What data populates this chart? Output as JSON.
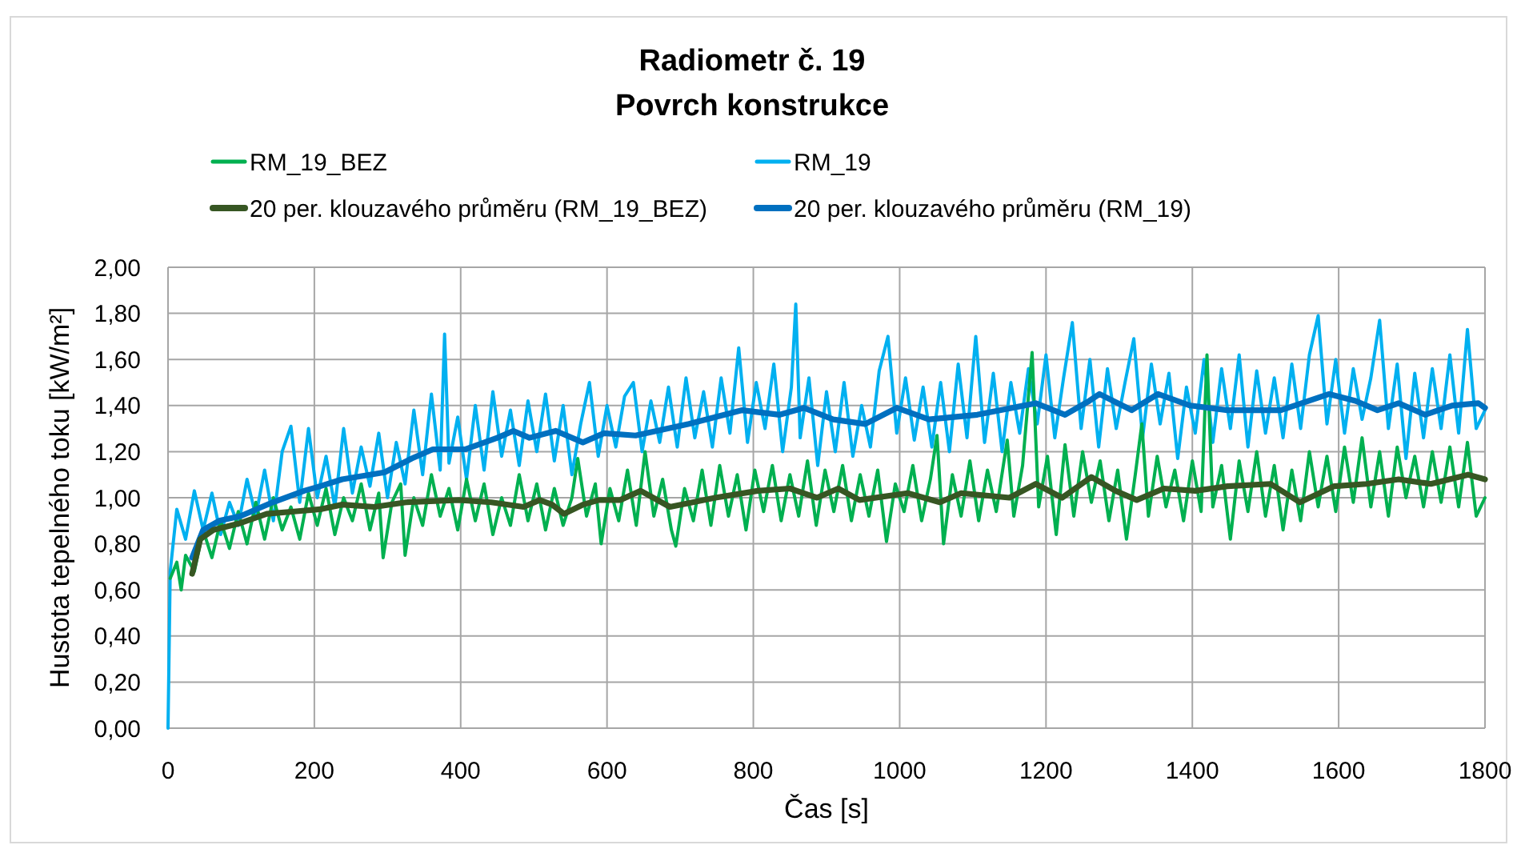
{
  "chart_data": {
    "type": "line",
    "title": "Radiometr č. 19",
    "subtitle": "Povrch konstrukce",
    "xlabel": "Čas [s]",
    "ylabel": "Hustota tepelného toku [kW/m²]",
    "xlim": [
      0,
      1800
    ],
    "xticks": [
      0,
      200,
      400,
      600,
      800,
      1000,
      1200,
      1400,
      1600,
      1800
    ],
    "ylim": [
      0,
      2
    ],
    "yticks": [
      {
        "value": 0,
        "label": "0,00"
      },
      {
        "value": 0.2,
        "label": "0,20"
      },
      {
        "value": 0.4,
        "label": "0,40"
      },
      {
        "value": 0.6,
        "label": "0,60"
      },
      {
        "value": 0.8,
        "label": "0,80"
      },
      {
        "value": 1,
        "label": "1,00"
      },
      {
        "value": 1.2,
        "label": "1,20"
      },
      {
        "value": 1.4,
        "label": "1,40"
      },
      {
        "value": 1.6,
        "label": "1,60"
      },
      {
        "value": 1.8,
        "label": "1,80"
      },
      {
        "value": 2,
        "label": "2,00"
      }
    ],
    "grid": true,
    "legend": "top",
    "series": [
      {
        "name": "RM_19_BEZ",
        "color": "#00b050",
        "x": [
          3,
          12,
          18,
          24,
          36,
          48,
          60,
          72,
          84,
          96,
          108,
          120,
          132,
          144,
          156,
          168,
          180,
          192,
          204,
          216,
          228,
          240,
          252,
          264,
          276,
          288,
          294,
          306,
          318,
          324,
          336,
          348,
          360,
          372,
          384,
          396,
          408,
          420,
          432,
          444,
          456,
          468,
          480,
          492,
          504,
          516,
          528,
          540,
          552,
          560,
          572,
          584,
          592,
          604,
          616,
          628,
          640,
          652,
          664,
          676,
          688,
          694,
          706,
          718,
          730,
          742,
          754,
          766,
          778,
          790,
          802,
          814,
          826,
          838,
          850,
          862,
          874,
          886,
          898,
          910,
          922,
          934,
          946,
          958,
          970,
          982,
          994,
          1006,
          1018,
          1030,
          1042,
          1051,
          1060,
          1072,
          1084,
          1096,
          1108,
          1120,
          1132,
          1147,
          1156,
          1168,
          1181,
          1190,
          1202,
          1214,
          1226,
          1238,
          1250,
          1262,
          1274,
          1286,
          1298,
          1310,
          1322,
          1331,
          1340,
          1352,
          1364,
          1376,
          1388,
          1400,
          1412,
          1420,
          1428,
          1440,
          1452,
          1464,
          1476,
          1488,
          1500,
          1512,
          1524,
          1536,
          1548,
          1560,
          1572,
          1584,
          1596,
          1608,
          1620,
          1632,
          1644,
          1656,
          1668,
          1680,
          1692,
          1704,
          1716,
          1728,
          1740,
          1752,
          1764,
          1776,
          1788,
          1800
        ],
        "values": [
          0.65,
          0.72,
          0.6,
          0.75,
          0.68,
          0.86,
          0.74,
          0.9,
          0.78,
          0.94,
          0.8,
          0.98,
          0.82,
          1.0,
          0.86,
          0.96,
          0.82,
          1.02,
          0.88,
          1.04,
          0.84,
          1.0,
          0.9,
          1.06,
          0.86,
          1.02,
          0.74,
          0.98,
          1.06,
          0.75,
          1.0,
          0.88,
          1.1,
          0.92,
          1.04,
          0.86,
          1.08,
          0.9,
          1.06,
          0.84,
          1.0,
          0.88,
          1.1,
          0.9,
          1.06,
          0.86,
          1.04,
          0.88,
          1.0,
          1.17,
          0.92,
          1.06,
          0.8,
          1.04,
          0.9,
          1.12,
          0.88,
          1.2,
          0.92,
          1.08,
          0.86,
          0.79,
          1.04,
          0.9,
          1.12,
          0.88,
          1.14,
          0.92,
          1.1,
          0.86,
          1.12,
          0.94,
          1.14,
          0.9,
          1.1,
          0.92,
          1.16,
          0.88,
          1.12,
          0.94,
          1.14,
          0.9,
          1.1,
          0.92,
          1.12,
          0.81,
          1.06,
          0.94,
          1.14,
          0.9,
          1.08,
          1.27,
          0.8,
          1.1,
          0.92,
          1.16,
          0.9,
          1.12,
          0.94,
          1.25,
          0.92,
          1.14,
          1.63,
          0.96,
          1.18,
          0.84,
          1.23,
          0.92,
          1.2,
          0.98,
          1.16,
          0.9,
          1.12,
          0.82,
          1.1,
          1.32,
          0.92,
          1.18,
          0.96,
          1.12,
          0.9,
          1.16,
          0.94,
          1.62,
          0.96,
          1.14,
          0.82,
          1.16,
          0.94,
          1.2,
          0.92,
          1.14,
          0.86,
          1.12,
          0.9,
          1.2,
          0.96,
          1.18,
          0.94,
          1.22,
          0.98,
          1.26,
          0.96,
          1.2,
          0.92,
          1.22,
          1.0,
          1.18,
          0.96,
          1.2,
          0.98,
          1.22,
          0.96,
          1.24,
          0.92,
          1.0
        ]
      },
      {
        "name": "RM_19",
        "color": "#00b0f0",
        "x": [
          0,
          3,
          12,
          24,
          36,
          48,
          60,
          72,
          84,
          96,
          108,
          120,
          132,
          144,
          156,
          168,
          180,
          192,
          204,
          216,
          228,
          240,
          252,
          264,
          276,
          288,
          300,
          312,
          324,
          336,
          348,
          360,
          372,
          378,
          384,
          396,
          408,
          420,
          432,
          444,
          456,
          468,
          480,
          492,
          504,
          516,
          528,
          540,
          552,
          564,
          576,
          588,
          600,
          612,
          624,
          636,
          648,
          660,
          672,
          684,
          696,
          708,
          720,
          732,
          744,
          756,
          768,
          780,
          792,
          804,
          816,
          828,
          840,
          852,
          858,
          864,
          876,
          888,
          900,
          912,
          924,
          936,
          948,
          960,
          972,
          984,
          996,
          1008,
          1020,
          1032,
          1044,
          1056,
          1068,
          1080,
          1092,
          1104,
          1116,
          1128,
          1140,
          1152,
          1164,
          1176,
          1188,
          1200,
          1212,
          1224,
          1236,
          1248,
          1260,
          1272,
          1284,
          1296,
          1308,
          1320,
          1332,
          1344,
          1356,
          1368,
          1380,
          1392,
          1404,
          1416,
          1428,
          1440,
          1452,
          1464,
          1476,
          1488,
          1500,
          1512,
          1524,
          1536,
          1548,
          1560,
          1572,
          1584,
          1596,
          1608,
          1620,
          1632,
          1644,
          1656,
          1668,
          1680,
          1692,
          1704,
          1716,
          1728,
          1740,
          1752,
          1764,
          1776,
          1788,
          1800
        ],
        "values": [
          0.0,
          0.68,
          0.95,
          0.82,
          1.03,
          0.86,
          1.02,
          0.84,
          0.98,
          0.88,
          1.08,
          0.92,
          1.12,
          0.9,
          1.2,
          1.31,
          0.98,
          1.3,
          1.0,
          1.18,
          0.96,
          1.3,
          1.02,
          1.22,
          1.05,
          1.28,
          1.0,
          1.24,
          1.06,
          1.38,
          1.1,
          1.45,
          1.12,
          1.71,
          1.15,
          1.35,
          1.08,
          1.4,
          1.12,
          1.46,
          1.18,
          1.38,
          1.14,
          1.42,
          1.2,
          1.45,
          1.16,
          1.4,
          1.1,
          1.32,
          1.5,
          1.18,
          1.4,
          1.22,
          1.44,
          1.5,
          1.2,
          1.42,
          1.24,
          1.48,
          1.22,
          1.52,
          1.26,
          1.46,
          1.22,
          1.52,
          1.28,
          1.65,
          1.24,
          1.5,
          1.3,
          1.58,
          1.2,
          1.48,
          1.84,
          1.26,
          1.52,
          1.14,
          1.46,
          1.2,
          1.5,
          1.18,
          1.4,
          1.22,
          1.55,
          1.7,
          1.28,
          1.52,
          1.25,
          1.48,
          1.22,
          1.5,
          1.2,
          1.58,
          1.26,
          1.7,
          1.24,
          1.54,
          1.2,
          1.5,
          1.28,
          1.56,
          1.32,
          1.62,
          1.26,
          1.52,
          1.76,
          1.3,
          1.6,
          1.22,
          1.56,
          1.3,
          1.5,
          1.69,
          1.26,
          1.58,
          1.32,
          1.54,
          1.17,
          1.48,
          1.28,
          1.6,
          1.24,
          1.56,
          1.3,
          1.62,
          1.22,
          1.55,
          1.28,
          1.52,
          1.26,
          1.58,
          1.3,
          1.62,
          1.79,
          1.32,
          1.6,
          1.28,
          1.56,
          1.34,
          1.52,
          1.77,
          1.3,
          1.58,
          1.17,
          1.54,
          1.26,
          1.56,
          1.3,
          1.62,
          1.28,
          1.73,
          1.3,
          1.38
        ]
      },
      {
        "name": "20 per. klouzavého průměru (RM_19_BEZ)",
        "color": "#375623",
        "x": [
          33,
          44,
          62,
          99,
          135,
          172,
          208,
          238,
          282,
          325,
          398,
          442,
          486,
          508,
          525,
          541,
          567,
          589,
          618,
          646,
          686,
          748,
          806,
          850,
          887,
          916,
          945,
          1011,
          1055,
          1084,
          1150,
          1186,
          1222,
          1262,
          1295,
          1324,
          1361,
          1404,
          1448,
          1507,
          1547,
          1594,
          1638,
          1682,
          1726,
          1777,
          1800
        ],
        "values": [
          0.67,
          0.82,
          0.86,
          0.89,
          0.93,
          0.94,
          0.95,
          0.97,
          0.96,
          0.98,
          0.99,
          0.98,
          0.96,
          0.99,
          0.97,
          0.93,
          0.97,
          0.99,
          0.99,
          1.03,
          0.96,
          1.0,
          1.03,
          1.04,
          1.0,
          1.04,
          0.99,
          1.02,
          0.98,
          1.02,
          1.0,
          1.06,
          1.0,
          1.09,
          1.03,
          0.99,
          1.04,
          1.03,
          1.05,
          1.06,
          0.98,
          1.05,
          1.06,
          1.08,
          1.06,
          1.1,
          1.08
        ]
      },
      {
        "name": "20 per. klouzavého průměru (RM_19)",
        "color": "#0070c0",
        "x": [
          33,
          48,
          70,
          99,
          143,
          186,
          208,
          238,
          296,
          333,
          362,
          406,
          450,
          472,
          494,
          530,
          567,
          596,
          639,
          712,
          785,
          836,
          869,
          909,
          953,
          996,
          1040,
          1106,
          1186,
          1226,
          1259,
          1273,
          1317,
          1353,
          1397,
          1448,
          1521,
          1587,
          1623,
          1653,
          1682,
          1718,
          1755,
          1791,
          1800
        ],
        "values": [
          0.74,
          0.86,
          0.9,
          0.92,
          0.98,
          1.03,
          1.05,
          1.08,
          1.11,
          1.17,
          1.21,
          1.21,
          1.26,
          1.29,
          1.26,
          1.29,
          1.24,
          1.28,
          1.27,
          1.32,
          1.38,
          1.36,
          1.39,
          1.34,
          1.32,
          1.39,
          1.34,
          1.36,
          1.41,
          1.36,
          1.42,
          1.45,
          1.38,
          1.45,
          1.4,
          1.38,
          1.38,
          1.45,
          1.42,
          1.38,
          1.41,
          1.36,
          1.4,
          1.41,
          1.39
        ]
      }
    ]
  }
}
